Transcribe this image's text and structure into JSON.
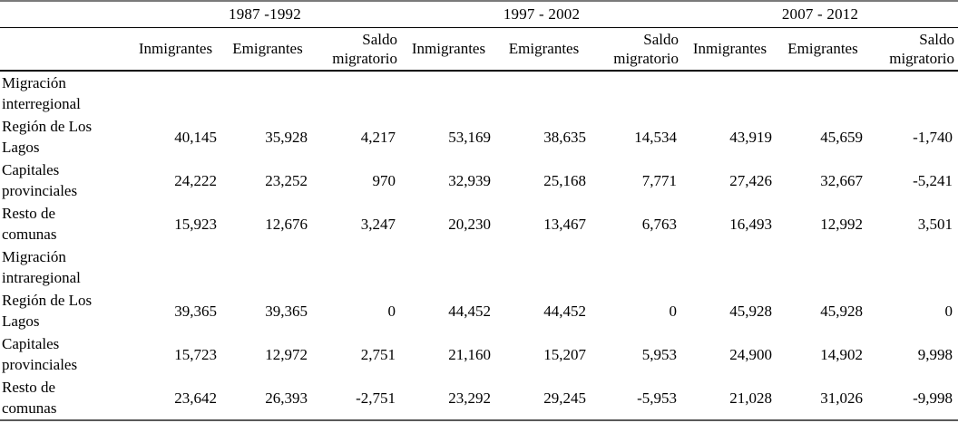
{
  "table": {
    "periods": [
      "1987 -1992",
      "1997 - 2002",
      "2007 - 2012"
    ],
    "measures": [
      "Inmigrantes",
      "Emigrantes",
      "Saldo migratorio"
    ],
    "rows": [
      {
        "label": "Migración interregional",
        "section": true,
        "values": [
          "",
          "",
          "",
          "",
          "",
          "",
          "",
          "",
          ""
        ]
      },
      {
        "label": "Región de Los Lagos",
        "section": false,
        "values": [
          "40,145",
          "35,928",
          "4,217",
          "53,169",
          "38,635",
          "14,534",
          "43,919",
          "45,659",
          "-1,740"
        ]
      },
      {
        "label": "Capitales provinciales",
        "section": false,
        "values": [
          "24,222",
          "23,252",
          "970",
          "32,939",
          "25,168",
          "7,771",
          "27,426",
          "32,667",
          "-5,241"
        ]
      },
      {
        "label": "Resto de comunas",
        "section": false,
        "values": [
          "15,923",
          "12,676",
          "3,247",
          "20,230",
          "13,467",
          "6,763",
          "16,493",
          "12,992",
          "3,501"
        ]
      },
      {
        "label": "Migración intraregional",
        "section": true,
        "values": [
          "",
          "",
          "",
          "",
          "",
          "",
          "",
          "",
          ""
        ]
      },
      {
        "label": "Región de Los Lagos",
        "section": false,
        "values": [
          "39,365",
          "39,365",
          "0",
          "44,452",
          "44,452",
          "0",
          "45,928",
          "45,928",
          "0"
        ]
      },
      {
        "label": "Capitales provinciales",
        "section": false,
        "values": [
          "15,723",
          "12,972",
          "2,751",
          "21,160",
          "15,207",
          "5,953",
          "24,900",
          "14,902",
          "9,998"
        ]
      },
      {
        "label": "Resto de comunas",
        "section": false,
        "values": [
          "23,642",
          "26,393",
          "-2,751",
          "23,292",
          "29,245",
          "-5,953",
          "21,028",
          "31,026",
          "-9,998"
        ]
      }
    ],
    "colors": {
      "text": "#000000",
      "rule": "#000000",
      "edge_rule": "#5a5a5a",
      "background": "#ffffff"
    }
  }
}
